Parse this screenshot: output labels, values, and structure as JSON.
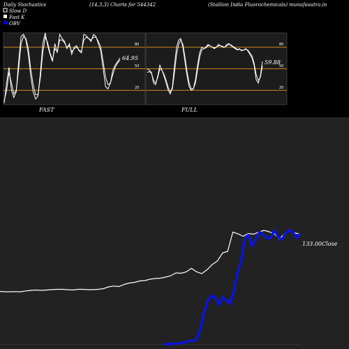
{
  "header": {
    "title": "Daily Stochastics",
    "params": "(14,3,3) Charts for 544342",
    "company": "(Stallion  India  Fluorochemicals) munafasutra.in"
  },
  "legend": [
    {
      "label": "Slow  D",
      "swatch": "#ffffff"
    },
    {
      "label": "Fast  K",
      "swatch": "#ffffff"
    },
    {
      "label": "OBV",
      "swatch": "#0000ff"
    }
  ],
  "colors": {
    "background": "#000000",
    "panel": "#1c1c1c",
    "level_line": "#c8861e",
    "stoch_line": "#ffffff",
    "obv_line": "#0a14dc",
    "price_line": "#ffffff",
    "lower_panel": "#222222"
  },
  "panels": {
    "fast_label": "FAST",
    "full_label": "FULL",
    "levels": [
      "80",
      "50",
      "20"
    ]
  },
  "close_label": "133.00Close",
  "chart_data": [
    {
      "type": "line",
      "name_label": "FAST",
      "ylim": [
        0,
        100
      ],
      "levels": [
        80,
        50,
        20
      ],
      "last_value": "64.95",
      "series": [
        {
          "name": "Fast  K",
          "values": [
            2,
            30,
            52,
            20,
            10,
            18,
            62,
            95,
            98,
            90,
            70,
            40,
            18,
            8,
            12,
            45,
            85,
            100,
            82,
            70,
            60,
            85,
            72,
            98,
            92,
            88,
            78,
            85,
            70,
            80,
            82,
            75,
            72,
            98,
            96,
            92,
            88,
            98,
            95,
            85,
            75,
            50,
            25,
            22,
            30,
            48,
            55,
            60,
            65
          ]
        },
        {
          "name": "Slow  D",
          "values": [
            5,
            20,
            45,
            30,
            15,
            20,
            50,
            85,
            95,
            92,
            78,
            50,
            28,
            14,
            14,
            38,
            72,
            94,
            86,
            72,
            62,
            78,
            74,
            90,
            90,
            86,
            80,
            82,
            74,
            78,
            80,
            76,
            74,
            90,
            94,
            92,
            90,
            94,
            94,
            88,
            80,
            60,
            38,
            28,
            30,
            42,
            52,
            58,
            62
          ]
        }
      ]
    },
    {
      "type": "line",
      "name_label": "FULL",
      "ylim": [
        0,
        100
      ],
      "levels": [
        80,
        50,
        20
      ],
      "last_value": "59.88",
      "series": [
        {
          "name": "Fast  K",
          "values": [
            50,
            48,
            45,
            30,
            28,
            40,
            55,
            48,
            40,
            30,
            20,
            15,
            25,
            55,
            80,
            90,
            92,
            80,
            60,
            40,
            25,
            20,
            22,
            35,
            55,
            72,
            80,
            78,
            80,
            84,
            82,
            80,
            78,
            80,
            84,
            82,
            80,
            80,
            84,
            85,
            82,
            80,
            78,
            76,
            78,
            75,
            76,
            78,
            75,
            70,
            65,
            55,
            35,
            30,
            40,
            60
          ]
        },
        {
          "name": "Slow  D",
          "values": [
            45,
            46,
            44,
            34,
            30,
            38,
            50,
            48,
            42,
            34,
            24,
            18,
            22,
            45,
            70,
            84,
            90,
            84,
            66,
            46,
            30,
            22,
            22,
            30,
            48,
            66,
            76,
            78,
            79,
            82,
            82,
            80,
            79,
            80,
            82,
            82,
            81,
            80,
            82,
            84,
            83,
            81,
            79,
            77,
            77,
            76,
            76,
            77,
            76,
            72,
            68,
            58,
            42,
            34,
            38,
            54
          ]
        }
      ]
    },
    {
      "type": "line",
      "series": [
        {
          "name": "Close",
          "values": [
            100.0,
            99.8,
            99.8,
            99.9,
            99.8,
            100.3,
            100.6,
            100.8,
            100.6,
            100.8,
            101.0,
            101.2,
            101.2,
            101.0,
            100.8,
            101.2,
            101.2,
            101.0,
            101.0,
            101.2,
            101.6,
            102.6,
            103.1,
            102.8,
            104.0,
            104.8,
            105.2,
            106.0,
            106.2,
            107.0,
            107.4,
            107.6,
            108.2,
            109.0,
            110.6,
            110.4,
            111.2,
            113.2,
            111.2,
            110.2,
            112.4,
            115.4,
            117.4,
            122.0,
            123.0,
            134.0,
            133.0,
            131.6,
            133.2,
            132.8,
            134.0,
            135.0,
            134.2,
            133.0,
            130.0,
            133.2,
            135.0,
            133.4,
            133.0
          ]
        },
        {
          "name": "OBV",
          "values": [
            0.0,
            0.0,
            0.1,
            0.3,
            0.4,
            0.8,
            1.2,
            2.2,
            2.0,
            3.0,
            10.0,
            20.0,
            28.0,
            31.0,
            30.0,
            25.0,
            30.0,
            28.0,
            26.0,
            33.0,
            45.0,
            53.0,
            68.0,
            70.0,
            63.0,
            67.0,
            72.0,
            70.0,
            68.0,
            68.0,
            73.0,
            69.0,
            67.0,
            71.0,
            73.0,
            72.0,
            68.0,
            71.0
          ]
        }
      ]
    }
  ]
}
